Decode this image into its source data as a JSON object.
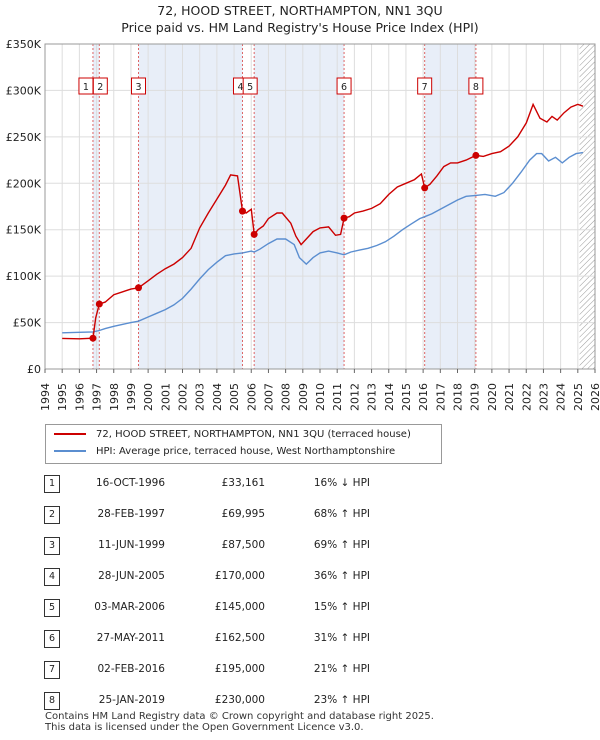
{
  "title_line1": "72, HOOD STREET, NORTHAMPTON, NN1 3QU",
  "title_line2": "Price paid vs. HM Land Registry's House Price Index (HPI)",
  "chart_data": {
    "type": "line",
    "xlim": [
      1994,
      2026
    ],
    "ylim": [
      0,
      350000
    ],
    "y_ticks": [
      0,
      50000,
      100000,
      150000,
      200000,
      250000,
      300000,
      350000
    ],
    "y_tick_labels": [
      "£0",
      "£50K",
      "£100K",
      "£150K",
      "£200K",
      "£250K",
      "£300K",
      "£350K"
    ],
    "x_ticks": [
      1994,
      1995,
      1996,
      1997,
      1998,
      1999,
      2000,
      2001,
      2002,
      2003,
      2004,
      2005,
      2006,
      2007,
      2008,
      2009,
      2010,
      2011,
      2012,
      2013,
      2014,
      2015,
      2016,
      2017,
      2018,
      2019,
      2020,
      2021,
      2022,
      2023,
      2024,
      2025,
      2026
    ],
    "x_tick_labels": [
      "1994",
      "1995",
      "1996",
      "1997",
      "1998",
      "1999",
      "2000",
      "2001",
      "2002",
      "2003",
      "2004",
      "2005",
      "2006",
      "2007",
      "2008",
      "2009",
      "2010",
      "2011",
      "2012",
      "2013",
      "2014",
      "2015",
      "2016",
      "2017",
      "2018",
      "2019",
      "2020",
      "2021",
      "2022",
      "2023",
      "2024",
      "2025",
      "2026"
    ],
    "shaded_ranges": [
      [
        1996.79,
        1997.16
      ],
      [
        1999.44,
        2005.49
      ],
      [
        2006.17,
        2011.4
      ],
      [
        2016.09,
        2019.07
      ]
    ],
    "hatched_range": [
      2025.1,
      2026
    ],
    "series": [
      {
        "name": "72, HOOD STREET, NORTHAMPTON, NN1 3QU (terraced house)",
        "color": "#cc0000",
        "x": [
          1995.0,
          1996.0,
          1996.79,
          1996.95,
          1997.16,
          1997.5,
          1998.0,
          1998.5,
          1999.0,
          1999.44,
          2000.0,
          2000.5,
          2001.0,
          2001.5,
          2002.0,
          2002.5,
          2003.0,
          2003.5,
          2004.0,
          2004.5,
          2004.8,
          2005.2,
          2005.49,
          2005.7,
          2006.0,
          2006.17,
          2006.4,
          2006.7,
          2007.0,
          2007.5,
          2007.8,
          2008.3,
          2008.6,
          2008.9,
          2009.2,
          2009.6,
          2010.0,
          2010.5,
          2010.9,
          2011.2,
          2011.4,
          2011.7,
          2012.0,
          2012.5,
          2013.0,
          2013.5,
          2014.0,
          2014.5,
          2015.0,
          2015.5,
          2015.9,
          2016.09,
          2016.4,
          2016.8,
          2017.2,
          2017.6,
          2018.0,
          2018.5,
          2019.07,
          2019.5,
          2020.0,
          2020.5,
          2021.0,
          2021.5,
          2022.0,
          2022.4,
          2022.8,
          2023.2,
          2023.5,
          2023.8,
          2024.2,
          2024.6,
          2025.0,
          2025.3
        ],
        "values": [
          33000,
          32500,
          33161,
          55000,
          69995,
          72000,
          80000,
          83000,
          86000,
          87500,
          95000,
          102000,
          108000,
          113000,
          120000,
          130000,
          152000,
          168000,
          183000,
          198000,
          209000,
          208000,
          170000,
          168000,
          172000,
          145000,
          150000,
          154000,
          162000,
          168000,
          168000,
          157000,
          143000,
          134000,
          140000,
          148000,
          152000,
          153000,
          144000,
          145000,
          162500,
          164000,
          168000,
          170000,
          173000,
          178000,
          188000,
          196000,
          200000,
          204000,
          210000,
          195000,
          199000,
          208000,
          218000,
          222000,
          222000,
          225000,
          230000,
          229000,
          232000,
          234000,
          240000,
          250000,
          265000,
          285000,
          270000,
          266000,
          272000,
          268000,
          276000,
          282000,
          285000,
          283000
        ]
      },
      {
        "name": "HPI: Average price, terraced house, West Northamptonshire",
        "color": "#5b8ed0",
        "x": [
          1995.0,
          1996.0,
          1996.79,
          1997.16,
          1997.5,
          1998.0,
          1998.5,
          1999.0,
          1999.44,
          2000.0,
          2000.5,
          2001.0,
          2001.5,
          2002.0,
          2002.5,
          2003.0,
          2003.5,
          2004.0,
          2004.5,
          2005.0,
          2005.49,
          2006.0,
          2006.17,
          2006.5,
          2007.0,
          2007.5,
          2008.0,
          2008.5,
          2008.8,
          2009.2,
          2009.6,
          2010.0,
          2010.5,
          2011.0,
          2011.4,
          2011.8,
          2012.3,
          2012.8,
          2013.3,
          2013.8,
          2014.3,
          2014.8,
          2015.3,
          2015.8,
          2016.09,
          2016.5,
          2017.0,
          2017.5,
          2018.0,
          2018.5,
          2019.07,
          2019.6,
          2020.2,
          2020.7,
          2021.2,
          2021.7,
          2022.2,
          2022.6,
          2022.9,
          2023.3,
          2023.7,
          2024.1,
          2024.5,
          2024.9,
          2025.3
        ],
        "values": [
          39000,
          39500,
          40000,
          41500,
          43500,
          46000,
          48000,
          50000,
          51500,
          56000,
          60000,
          64000,
          69000,
          76000,
          86000,
          97000,
          107000,
          115000,
          122000,
          124000,
          125000,
          127000,
          126000,
          129000,
          135000,
          140000,
          140000,
          134000,
          120000,
          113000,
          120000,
          125000,
          127000,
          125000,
          123000,
          126000,
          128000,
          130000,
          133000,
          137000,
          143000,
          150000,
          156000,
          162000,
          164000,
          167000,
          172000,
          177000,
          182000,
          186000,
          187000,
          188000,
          186000,
          190000,
          200000,
          212000,
          225000,
          232000,
          232000,
          224000,
          228000,
          222000,
          228000,
          232000,
          233000
        ]
      }
    ],
    "markers": [
      {
        "label": "1",
        "x": 1996.79,
        "y": 33161
      },
      {
        "label": "2",
        "x": 1997.16,
        "y": 69995
      },
      {
        "label": "3",
        "x": 1999.44,
        "y": 87500
      },
      {
        "label": "4",
        "x": 2005.49,
        "y": 170000
      },
      {
        "label": "5",
        "x": 2006.17,
        "y": 145000
      },
      {
        "label": "6",
        "x": 2011.4,
        "y": 162500
      },
      {
        "label": "7",
        "x": 2016.09,
        "y": 195000
      },
      {
        "label": "8",
        "x": 2019.07,
        "y": 230000
      }
    ],
    "marker_colors": {
      "line": "#cc0000",
      "point": "#cc0000",
      "vline": "#dd6666",
      "shade": "#e8eef8",
      "hatch": "#999999"
    }
  },
  "legend": {
    "red_label": "72, HOOD STREET, NORTHAMPTON, NN1 3QU (terraced house)",
    "blue_label": "HPI: Average price, terraced house, West Northamptonshire"
  },
  "sales": [
    {
      "num": "1",
      "date": "16-OCT-1996",
      "price": "£33,161",
      "hpi": "16% ↓ HPI"
    },
    {
      "num": "2",
      "date": "28-FEB-1997",
      "price": "£69,995",
      "hpi": "68% ↑ HPI"
    },
    {
      "num": "3",
      "date": "11-JUN-1999",
      "price": "£87,500",
      "hpi": "69% ↑ HPI"
    },
    {
      "num": "4",
      "date": "28-JUN-2005",
      "price": "£170,000",
      "hpi": "36% ↑ HPI"
    },
    {
      "num": "5",
      "date": "03-MAR-2006",
      "price": "£145,000",
      "hpi": "15% ↑ HPI"
    },
    {
      "num": "6",
      "date": "27-MAY-2011",
      "price": "£162,500",
      "hpi": "31% ↑ HPI"
    },
    {
      "num": "7",
      "date": "02-FEB-2016",
      "price": "£195,000",
      "hpi": "21% ↑ HPI"
    },
    {
      "num": "8",
      "date": "25-JAN-2019",
      "price": "£230,000",
      "hpi": "23% ↑ HPI"
    }
  ],
  "footer_line1": "Contains HM Land Registry data © Crown copyright and database right 2025.",
  "footer_line2": "This data is licensed under the Open Government Licence v3.0."
}
